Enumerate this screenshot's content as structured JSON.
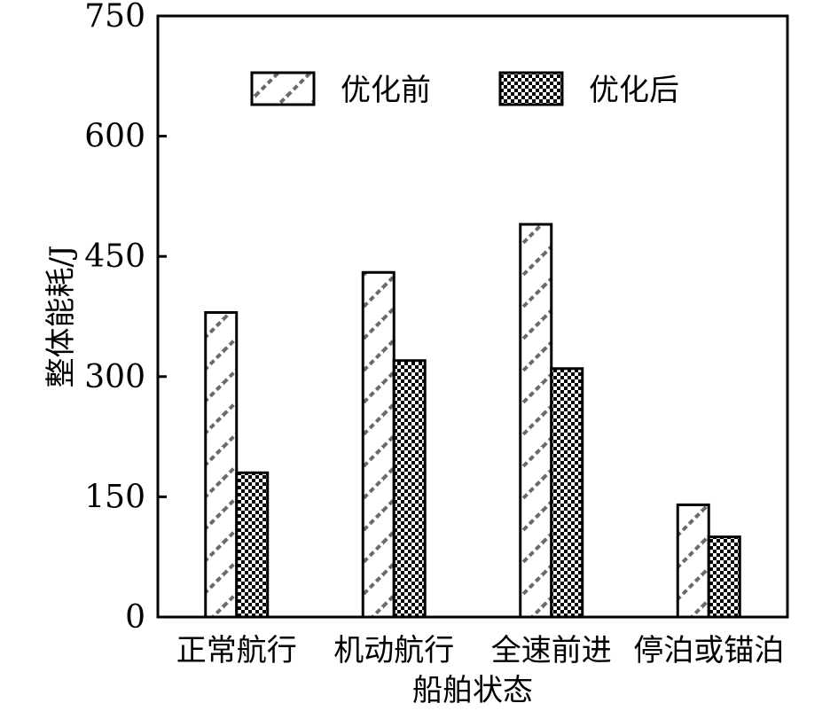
{
  "chart_data": {
    "type": "bar",
    "title": "",
    "xlabel": "船舶状态",
    "ylabel": "整体能耗/J",
    "ylim": [
      0,
      750
    ],
    "yticks": [
      "0",
      "150",
      "300",
      "450",
      "600",
      "750"
    ],
    "categories": [
      "正常航行",
      "机动航行",
      "全速前进",
      "停泊或锚泊"
    ],
    "series": [
      {
        "name": "优化前",
        "values": [
          380,
          430,
          490,
          140
        ],
        "pattern": "diagonal-hatch"
      },
      {
        "name": "优化后",
        "values": [
          180,
          320,
          310,
          100
        ],
        "pattern": "checkerboard"
      }
    ],
    "legend_position": "top-center",
    "grid": false,
    "colors": {
      "bar_stroke": "#000000",
      "hatch": "#666666",
      "background": "#ffffff"
    }
  }
}
